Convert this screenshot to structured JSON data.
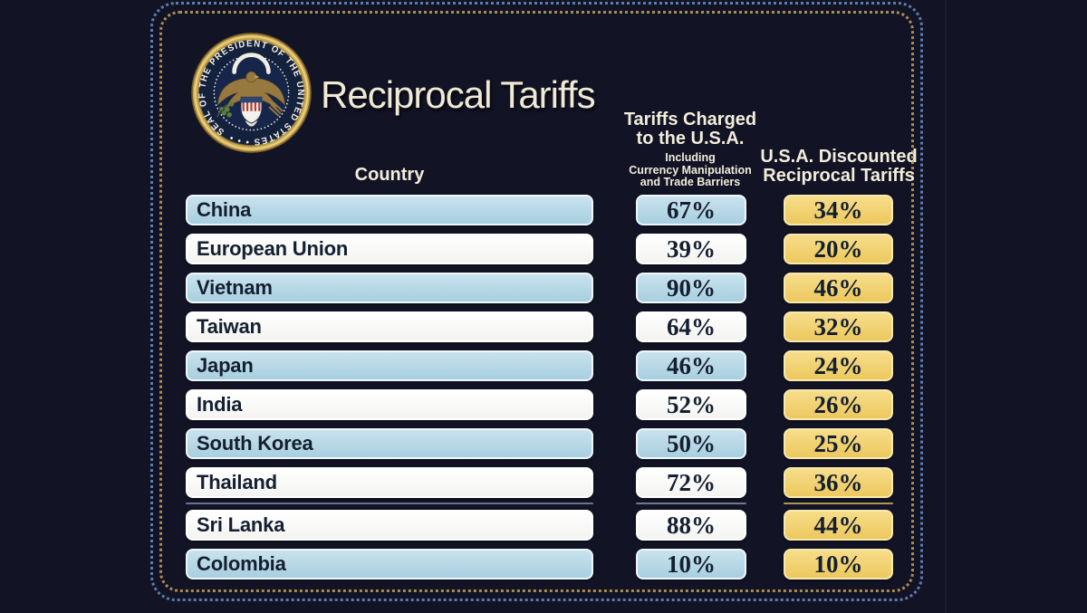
{
  "title": "Reciprocal Tariffs",
  "seal": {
    "ring_text": "SEAL OF THE PRESIDENT OF THE UNITED STATES • • •"
  },
  "table_headers": {
    "country": "Country",
    "charged_title_line1": "Tariffs Charged",
    "charged_title_line2": "to the U.S.A.",
    "charged_sub_line1": "Including",
    "charged_sub_line2": "Currency Manipulation",
    "charged_sub_line3": "and Trade Barriers",
    "discounted_title_line1": "U.S.A. Discounted",
    "discounted_title_line2": "Reciprocal Tariffs"
  },
  "colors": {
    "background": "#121325",
    "row_blue": "#aed3e4",
    "row_white": "#ffffff",
    "gold": "#f0d06e",
    "border_dots_blue": "#5b7dab",
    "border_dots_gold": "#a98c52",
    "heading_cream": "#f2eddb",
    "text_dark": "#141f30"
  },
  "chart_data": {
    "type": "table",
    "title": "Reciprocal Tariffs",
    "columns": [
      "Country",
      "Tariffs Charged to the U.S.A. Including Currency Manipulation and Trade Barriers",
      "U.S.A. Discounted Reciprocal Tariffs"
    ],
    "rows": [
      {
        "country": "China",
        "charged_pct": 67,
        "discounted_pct": 34,
        "charged_label": "67%",
        "discounted_label": "34%",
        "row_style": "blue"
      },
      {
        "country": "European Union",
        "charged_pct": 39,
        "discounted_pct": 20,
        "charged_label": "39%",
        "discounted_label": "20%",
        "row_style": "white"
      },
      {
        "country": "Vietnam",
        "charged_pct": 90,
        "discounted_pct": 46,
        "charged_label": "90%",
        "discounted_label": "46%",
        "row_style": "blue"
      },
      {
        "country": "Taiwan",
        "charged_pct": 64,
        "discounted_pct": 32,
        "charged_label": "64%",
        "discounted_label": "32%",
        "row_style": "white"
      },
      {
        "country": "Japan",
        "charged_pct": 46,
        "discounted_pct": 24,
        "charged_label": "46%",
        "discounted_label": "24%",
        "row_style": "blue"
      },
      {
        "country": "India",
        "charged_pct": 52,
        "discounted_pct": 26,
        "charged_label": "52%",
        "discounted_label": "26%",
        "row_style": "white"
      },
      {
        "country": "South Korea",
        "charged_pct": 50,
        "discounted_pct": 25,
        "charged_label": "50%",
        "discounted_label": "25%",
        "row_style": "blue"
      },
      {
        "country": "Thailand",
        "charged_pct": 72,
        "discounted_pct": 36,
        "charged_label": "72%",
        "discounted_label": "36%",
        "row_style": "white"
      },
      {
        "country": "Sri Lanka",
        "charged_pct": 88,
        "discounted_pct": 44,
        "charged_label": "88%",
        "discounted_label": "44%",
        "row_style": "white"
      },
      {
        "country": "Colombia",
        "charged_pct": 10,
        "discounted_pct": 10,
        "charged_label": "10%",
        "discounted_label": "10%",
        "row_style": "blue"
      }
    ]
  }
}
